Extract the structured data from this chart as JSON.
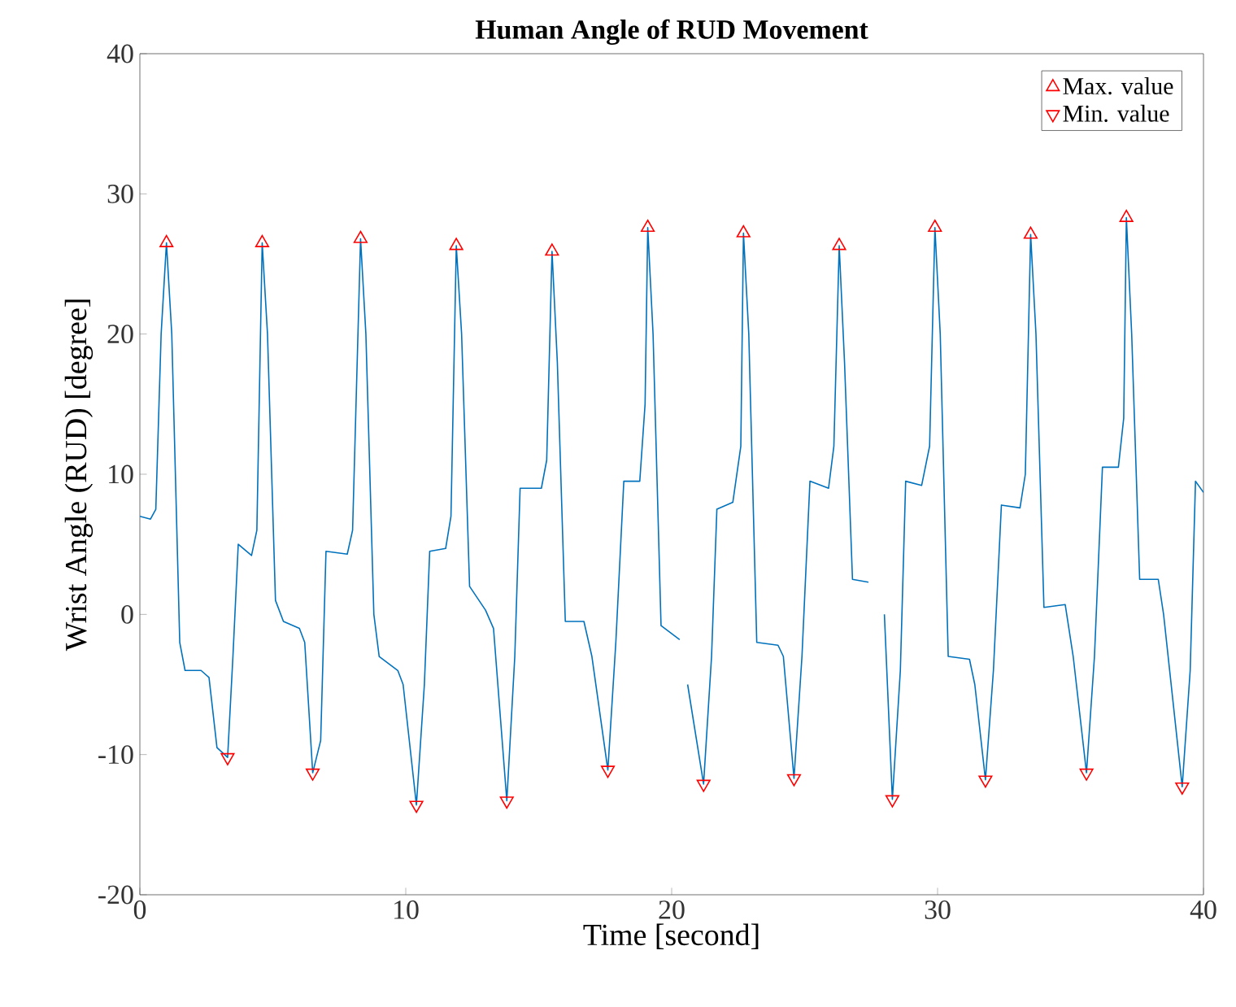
{
  "chart_data": {
    "type": "line",
    "title": "Human Angle of RUD Movement",
    "xlabel": "Time [second]",
    "ylabel": "Wrist Angle (RUD) [degree]",
    "xlim": [
      0,
      40
    ],
    "ylim": [
      -20,
      40
    ],
    "xticks": [
      0,
      10,
      20,
      30,
      40
    ],
    "yticks": [
      -20,
      -10,
      0,
      10,
      20,
      30,
      40
    ],
    "grid": false,
    "legend": "top right",
    "series": [
      {
        "color": "#0072bd",
        "marker": "none",
        "line_style": "solid",
        "x": [
          0,
          0.4,
          0.6,
          0.8,
          1.0,
          1.2,
          1.5,
          1.7,
          2.3,
          2.6,
          2.9,
          3.3,
          3.5,
          3.7,
          4.2,
          4.4,
          4.6,
          4.8,
          5.1,
          5.4,
          6.0,
          6.2,
          6.5,
          6.8,
          7.0,
          7.8,
          8.0,
          8.3,
          8.5,
          8.8,
          9.0,
          9.7,
          9.9,
          10.4,
          10.7,
          10.9,
          11.5,
          11.7,
          11.9,
          12.1,
          12.4,
          13.0,
          13.3,
          13.8,
          14.1,
          14.3,
          15.1,
          15.3,
          15.5,
          15.7,
          16.0,
          16.7,
          17.0,
          17.6,
          17.9,
          18.2,
          18.8,
          19.0,
          19.1,
          19.3,
          19.6,
          20.3,
          20.45,
          20.6,
          21.2,
          21.5,
          21.7,
          22.3,
          22.6,
          22.7,
          22.9,
          23.2,
          24.0,
          24.2,
          24.6,
          24.9,
          25.2,
          25.9,
          26.1,
          26.3,
          26.5,
          26.8,
          27.4,
          27.7,
          28.0,
          28.3,
          28.6,
          28.8,
          29.4,
          29.7,
          29.9,
          30.1,
          30.4,
          31.2,
          31.4,
          31.8,
          32.1,
          32.4,
          33.1,
          33.3,
          33.5,
          33.7,
          34.0,
          34.8,
          35.1,
          35.6,
          35.9,
          36.2,
          36.8,
          37.0,
          37.1,
          37.3,
          37.6,
          38.3,
          38.5,
          39.2,
          39.5,
          39.7,
          40
        ],
        "values": [
          7,
          6.8,
          7.5,
          20,
          26.5,
          20,
          -2,
          -4,
          -4,
          -4.5,
          -9.5,
          -10.2,
          -3,
          5,
          4.2,
          6,
          26.5,
          20,
          1,
          -0.5,
          -1,
          -2,
          -11.3,
          -9,
          4.5,
          4.3,
          6,
          26.8,
          20,
          0,
          -3,
          -4,
          -5,
          -13.6,
          -5,
          4.5,
          4.7,
          7,
          26.3,
          20,
          2,
          0.3,
          -1,
          -13.3,
          -3,
          9,
          9,
          11,
          25.9,
          18,
          -0.5,
          -0.5,
          -3,
          -11.1,
          -2,
          9.5,
          9.5,
          15,
          27.6,
          20,
          -0.8,
          -1.8,
          null,
          -5,
          -12.1,
          -3,
          7.5,
          8,
          12,
          27.2,
          20,
          -2,
          -2.2,
          -3,
          -11.7,
          -3,
          9.5,
          9,
          12,
          26.3,
          18,
          2.5,
          2.3,
          null,
          0,
          -13.2,
          -4,
          9.5,
          9.2,
          12,
          27.6,
          20,
          -3,
          -3.2,
          -5,
          -11.8,
          -4,
          7.8,
          7.6,
          10,
          27.1,
          20,
          0.5,
          0.7,
          -3,
          -11.3,
          -3,
          10.5,
          10.5,
          14,
          28.3,
          20,
          2.5,
          2.5,
          0,
          -12.3,
          -4,
          9.5,
          8.7
        ]
      },
      {
        "type": "scatter",
        "name": "Max. value",
        "color": "#ff0000",
        "marker": "triangle",
        "x": [
          1.0,
          4.6,
          8.3,
          11.9,
          15.5,
          19.1,
          22.7,
          26.3,
          29.9,
          33.5,
          37.1
        ],
        "values": [
          26.5,
          26.5,
          26.8,
          26.3,
          25.9,
          27.6,
          27.2,
          26.3,
          27.6,
          27.1,
          28.3
        ]
      },
      {
        "type": "scatter",
        "name": "Min. value",
        "color": "#ff0000",
        "marker": "triangle-down",
        "x": [
          3.3,
          6.5,
          10.4,
          13.8,
          17.6,
          21.2,
          24.6,
          28.3,
          31.8,
          35.6,
          39.2
        ],
        "values": [
          -10.2,
          -11.3,
          -13.6,
          -13.3,
          -11.1,
          -12.1,
          -11.7,
          -13.2,
          -11.8,
          -11.3,
          -12.3
        ]
      }
    ]
  }
}
